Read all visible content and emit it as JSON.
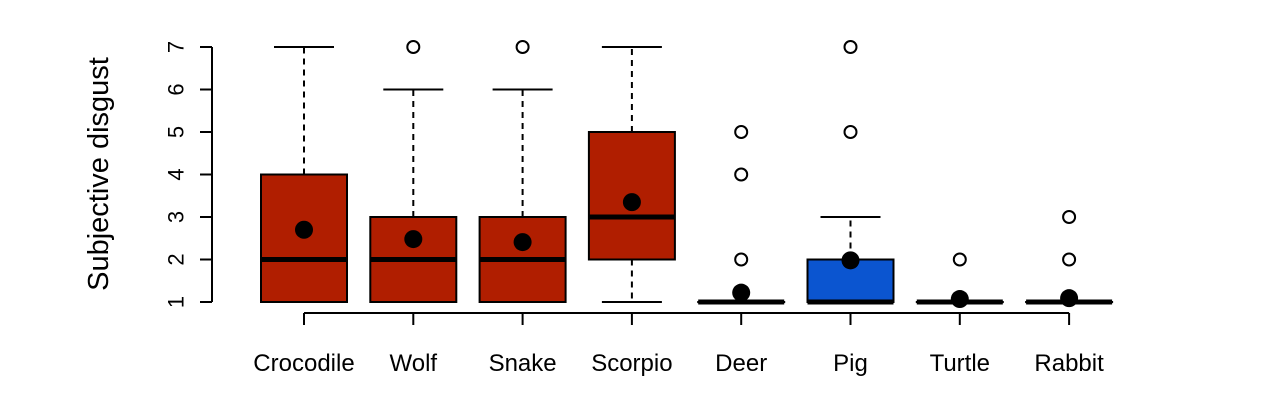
{
  "chart_data": {
    "type": "boxplot",
    "ylabel": "Subjective disgust",
    "xlabel": "",
    "title": "",
    "ylim": [
      1,
      7
    ],
    "yticks": [
      1,
      2,
      3,
      4,
      5,
      6,
      7
    ],
    "grid": false,
    "categories": [
      "Crocodile",
      "Wolf",
      "Snake",
      "Scorpio",
      "Deer",
      "Pig",
      "Turtle",
      "Rabbit"
    ],
    "boxes": [
      {
        "category": "Crocodile",
        "color": "#B01E00",
        "whisker_low": 1,
        "q1": 1,
        "median": 2,
        "q3": 4,
        "whisker_high": 7,
        "mean": 2.7,
        "outliers": []
      },
      {
        "category": "Wolf",
        "color": "#B01E00",
        "whisker_low": 1,
        "q1": 1,
        "median": 2,
        "q3": 3,
        "whisker_high": 6,
        "mean": 2.48,
        "outliers": [
          7
        ]
      },
      {
        "category": "Snake",
        "color": "#B01E00",
        "whisker_low": 1,
        "q1": 1,
        "median": 2,
        "q3": 3,
        "whisker_high": 6,
        "mean": 2.41,
        "outliers": [
          7
        ]
      },
      {
        "category": "Scorpio",
        "color": "#B01E00",
        "whisker_low": 1,
        "q1": 2,
        "median": 3,
        "q3": 5,
        "whisker_high": 7,
        "mean": 3.35,
        "outliers": []
      },
      {
        "category": "Deer",
        "color": "#B01E00",
        "whisker_low": 1,
        "q1": 1,
        "median": 1,
        "q3": 1,
        "whisker_high": 1,
        "mean": 1.22,
        "outliers": [
          2,
          4,
          5
        ]
      },
      {
        "category": "Pig",
        "color": "#0B55D0",
        "whisker_low": 1,
        "q1": 1,
        "median": 1,
        "q3": 2,
        "whisker_high": 3,
        "mean": 1.98,
        "outliers": [
          5,
          7
        ]
      },
      {
        "category": "Turtle",
        "color": "#B01E00",
        "whisker_low": 1,
        "q1": 1,
        "median": 1,
        "q3": 1,
        "whisker_high": 1,
        "mean": 1.07,
        "outliers": [
          2
        ]
      },
      {
        "category": "Rabbit",
        "color": "#B01E00",
        "whisker_low": 1,
        "q1": 1,
        "median": 1,
        "q3": 1,
        "whisker_high": 1,
        "mean": 1.09,
        "outliers": [
          2,
          3
        ]
      }
    ]
  }
}
